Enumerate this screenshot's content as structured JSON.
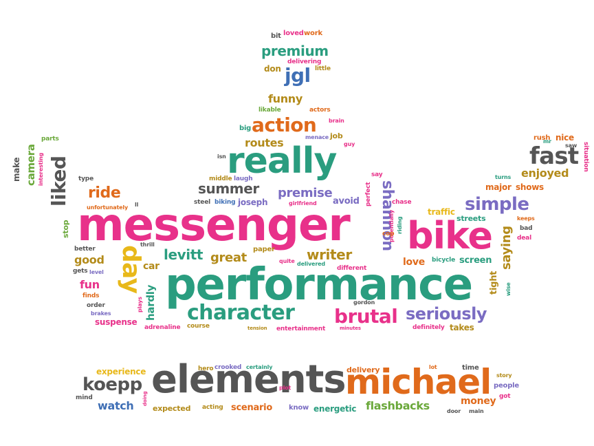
{
  "palette": {
    "pink": "#e8318a",
    "teal": "#2a9d7f",
    "orange": "#e06a1b",
    "gray": "#555555",
    "purple": "#7a6cc2",
    "olive": "#b38b1a",
    "blue": "#3f6fb5",
    "green": "#6aa83a",
    "yellow": "#e8b81a"
  },
  "words": [
    {
      "t": "bit",
      "c": "gray"
    },
    {
      "t": "loved",
      "c": "pink"
    },
    {
      "t": "work",
      "c": "orange"
    },
    {
      "t": "premium",
      "c": "teal"
    },
    {
      "t": "delivering",
      "c": "pink"
    },
    {
      "t": "don",
      "c": "olive"
    },
    {
      "t": "jgl",
      "c": "blue"
    },
    {
      "t": "little",
      "c": "olive"
    },
    {
      "t": "funny",
      "c": "olive"
    },
    {
      "t": "likable",
      "c": "green"
    },
    {
      "t": "actors",
      "c": "orange"
    },
    {
      "t": "brain",
      "c": "pink"
    },
    {
      "t": "big",
      "c": "teal"
    },
    {
      "t": "action",
      "c": "orange"
    },
    {
      "t": "menace",
      "c": "purple"
    },
    {
      "t": "job",
      "c": "olive"
    },
    {
      "t": "guy",
      "c": "pink"
    },
    {
      "t": "parts",
      "c": "green"
    },
    {
      "t": "camera",
      "c": "green"
    },
    {
      "t": "make",
      "c": "gray"
    },
    {
      "t": "interesting",
      "c": "pink"
    },
    {
      "t": "routes",
      "c": "olive"
    },
    {
      "t": "isn",
      "c": "gray"
    },
    {
      "t": "really",
      "c": "teal"
    },
    {
      "t": "rush",
      "c": "orange"
    },
    {
      "t": "nice",
      "c": "orange"
    },
    {
      "t": "mr",
      "c": "teal"
    },
    {
      "t": "saw",
      "c": "gray"
    },
    {
      "t": "fast",
      "c": "gray"
    },
    {
      "t": "situation",
      "c": "pink"
    },
    {
      "t": "type",
      "c": "gray"
    },
    {
      "t": "liked",
      "c": "gray"
    },
    {
      "t": "middle",
      "c": "olive"
    },
    {
      "t": "laugh",
      "c": "purple"
    },
    {
      "t": "say",
      "c": "pink"
    },
    {
      "t": "turns",
      "c": "teal"
    },
    {
      "t": "enjoyed",
      "c": "olive"
    },
    {
      "t": "ride",
      "c": "orange"
    },
    {
      "t": "summer",
      "c": "gray"
    },
    {
      "t": "perfect",
      "c": "pink"
    },
    {
      "t": "major",
      "c": "orange"
    },
    {
      "t": "shows",
      "c": "orange"
    },
    {
      "t": "unfortunately",
      "c": "orange"
    },
    {
      "t": "ll",
      "c": "gray"
    },
    {
      "t": "steel",
      "c": "gray"
    },
    {
      "t": "biking",
      "c": "blue"
    },
    {
      "t": "joseph",
      "c": "purple"
    },
    {
      "t": "premise",
      "c": "purple"
    },
    {
      "t": "girlfriend",
      "c": "pink"
    },
    {
      "t": "avoid",
      "c": "purple"
    },
    {
      "t": "chase",
      "c": "pink"
    },
    {
      "t": "simple",
      "c": "purple"
    },
    {
      "t": "stop",
      "c": "green"
    },
    {
      "t": "messenger",
      "c": "pink"
    },
    {
      "t": "shannon",
      "c": "purple"
    },
    {
      "t": "potentially",
      "c": "pink"
    },
    {
      "t": "riding",
      "c": "teal"
    },
    {
      "t": "traffic",
      "c": "yellow"
    },
    {
      "t": "keeps",
      "c": "orange"
    },
    {
      "t": "streets",
      "c": "teal"
    },
    {
      "t": "bad",
      "c": "gray"
    },
    {
      "t": "cop",
      "c": "orange"
    },
    {
      "t": "bike",
      "c": "pink"
    },
    {
      "t": "saying",
      "c": "olive"
    },
    {
      "t": "deal",
      "c": "pink"
    },
    {
      "t": "better",
      "c": "gray"
    },
    {
      "t": "thrill",
      "c": "gray"
    },
    {
      "t": "paper",
      "c": "olive"
    },
    {
      "t": "levitt",
      "c": "teal"
    },
    {
      "t": "great",
      "c": "olive"
    },
    {
      "t": "writer",
      "c": "olive"
    },
    {
      "t": "good",
      "c": "olive"
    },
    {
      "t": "day",
      "c": "yellow"
    },
    {
      "t": "car",
      "c": "olive"
    },
    {
      "t": "quite",
      "c": "pink"
    },
    {
      "t": "delivered",
      "c": "teal"
    },
    {
      "t": "love",
      "c": "orange"
    },
    {
      "t": "bicycle",
      "c": "teal"
    },
    {
      "t": "screen",
      "c": "teal"
    },
    {
      "t": "gets",
      "c": "gray"
    },
    {
      "t": "level",
      "c": "purple"
    },
    {
      "t": "different",
      "c": "pink"
    },
    {
      "t": "tight",
      "c": "olive"
    },
    {
      "t": "fun",
      "c": "pink"
    },
    {
      "t": "performance",
      "c": "teal"
    },
    {
      "t": "wise",
      "c": "teal"
    },
    {
      "t": "finds",
      "c": "orange"
    },
    {
      "t": "order",
      "c": "gray"
    },
    {
      "t": "hardly",
      "c": "teal"
    },
    {
      "t": "gordon",
      "c": "gray"
    },
    {
      "t": "brakes",
      "c": "purple"
    },
    {
      "t": "plays",
      "c": "pink"
    },
    {
      "t": "character",
      "c": "teal"
    },
    {
      "t": "brutal",
      "c": "pink"
    },
    {
      "t": "seriously",
      "c": "purple"
    },
    {
      "t": "suspense",
      "c": "pink"
    },
    {
      "t": "adrenaline",
      "c": "pink"
    },
    {
      "t": "course",
      "c": "olive"
    },
    {
      "t": "tension",
      "c": "olive"
    },
    {
      "t": "entertainment",
      "c": "pink"
    },
    {
      "t": "minutes",
      "c": "pink"
    },
    {
      "t": "definitely",
      "c": "pink"
    },
    {
      "t": "takes",
      "c": "olive"
    },
    {
      "t": "experience",
      "c": "yellow"
    },
    {
      "t": "hero",
      "c": "olive"
    },
    {
      "t": "crooked",
      "c": "purple"
    },
    {
      "t": "certainly",
      "c": "teal"
    },
    {
      "t": "delivery",
      "c": "orange"
    },
    {
      "t": "lot",
      "c": "orange"
    },
    {
      "t": "time",
      "c": "gray"
    },
    {
      "t": "story",
      "c": "olive"
    },
    {
      "t": "koepp",
      "c": "gray"
    },
    {
      "t": "elements",
      "c": "gray"
    },
    {
      "t": "michael",
      "c": "orange"
    },
    {
      "t": "people",
      "c": "purple"
    },
    {
      "t": "plot",
      "c": "pink"
    },
    {
      "t": "got",
      "c": "pink"
    },
    {
      "t": "mind",
      "c": "gray"
    },
    {
      "t": "doing",
      "c": "pink"
    },
    {
      "t": "money",
      "c": "orange"
    },
    {
      "t": "watch",
      "c": "blue"
    },
    {
      "t": "expected",
      "c": "olive"
    },
    {
      "t": "acting",
      "c": "olive"
    },
    {
      "t": "scenario",
      "c": "orange"
    },
    {
      "t": "know",
      "c": "purple"
    },
    {
      "t": "energetic",
      "c": "teal"
    },
    {
      "t": "flashbacks",
      "c": "green"
    },
    {
      "t": "door",
      "c": "gray"
    },
    {
      "t": "main",
      "c": "gray"
    }
  ]
}
